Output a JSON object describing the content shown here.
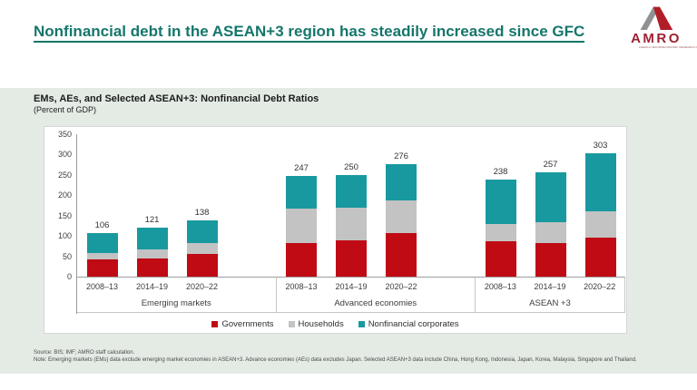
{
  "slide": {
    "title": "Nonfinancial debt in the ASEAN+3 region has steadily increased since GFC",
    "logo": {
      "name": "AMRO",
      "tagline": "ASEAN+3 MACROECONOMIC RESEARCH OFFICE"
    },
    "footer": {
      "source": "Source: BIS; IMF; AMRO staff calculation.",
      "note": "Note: Emerging markets (EMs) data exclude emerging market economies in ASEAN+3. Advance economies (AEs) data excludes Japan. Selected ASEAN+3 data include China, Hong Kong, Indonesia, Japan, Korea, Malaysia, Singapore and Thailand."
    },
    "colors": {
      "title_teal": "#15766b",
      "band_green": "#e4ebe5",
      "logo_red": "#9e2130",
      "logo_gray": "#8f9194"
    }
  },
  "chart_data": {
    "type": "bar",
    "stacked": true,
    "title": "EMs, AEs, and Selected ASEAN+3: Nonfinancial Debt Ratios",
    "subtitle": "(Percent of GDP)",
    "ylim": [
      0,
      350
    ],
    "yticks": [
      0,
      50,
      100,
      150,
      200,
      250,
      300,
      350
    ],
    "grid": false,
    "legend_position": "bottom",
    "series_names": [
      "Governments",
      "Households",
      "Nonfinancial corporates"
    ],
    "series_colors": [
      "#c00a14",
      "#c3c3c3",
      "#1899a0"
    ],
    "groups": [
      {
        "label": "Emerging markets",
        "bars": [
          {
            "period": "2008–13",
            "total": 106,
            "values": [
              43,
              16,
              47
            ]
          },
          {
            "period": "2014–19",
            "total": 121,
            "values": [
              45,
              22,
              54
            ]
          },
          {
            "period": "2020–22",
            "total": 138,
            "values": [
              56,
              26,
              56
            ]
          }
        ]
      },
      {
        "label": "Advanced economies",
        "bars": [
          {
            "period": "2008–13",
            "total": 247,
            "values": [
              83,
              84,
              80
            ]
          },
          {
            "period": "2014–19",
            "total": 250,
            "values": [
              89,
              81,
              80
            ]
          },
          {
            "period": "2020–22",
            "total": 276,
            "values": [
              106,
              81,
              89
            ]
          }
        ]
      },
      {
        "label": "ASEAN +3",
        "bars": [
          {
            "period": "2008–13",
            "total": 238,
            "values": [
              87,
              43,
              108
            ]
          },
          {
            "period": "2014–19",
            "total": 257,
            "values": [
              83,
              50,
              124
            ]
          },
          {
            "period": "2020–22",
            "total": 303,
            "values": [
              96,
              64,
              143
            ]
          }
        ]
      }
    ]
  }
}
